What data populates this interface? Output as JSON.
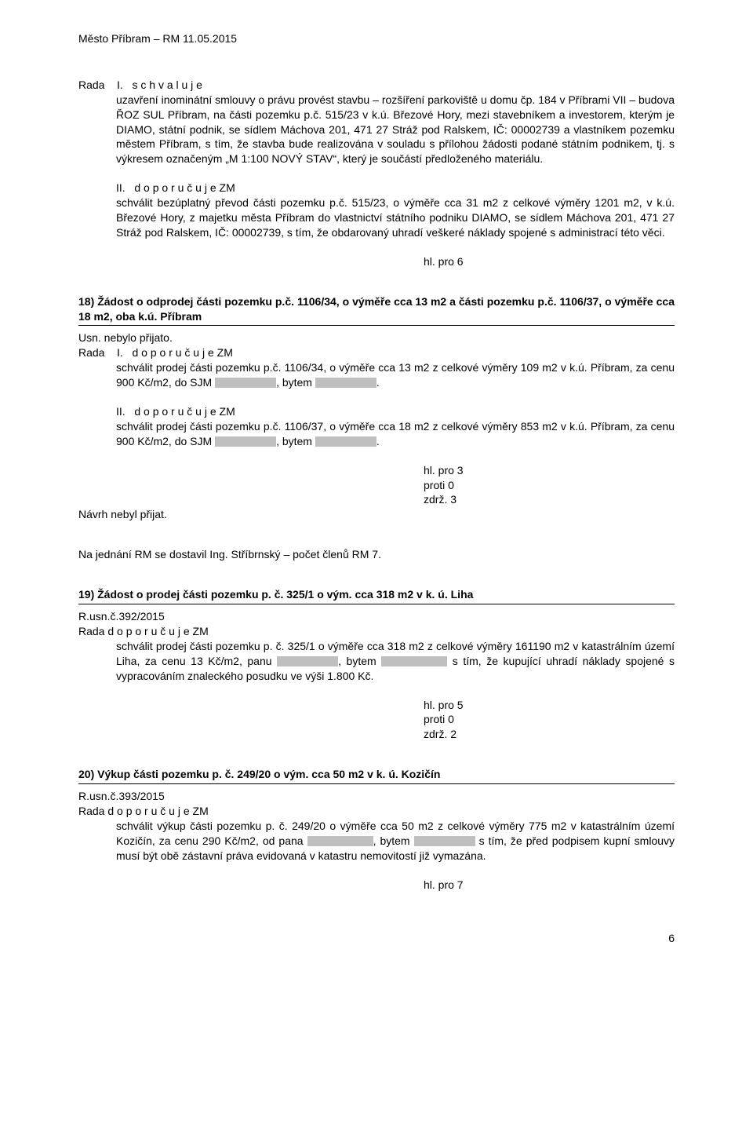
{
  "header": "Město Příbram – RM 11.05.2015",
  "s1": {
    "line1_prefix": "Rada",
    "line1_roman": "I.",
    "line1_rest": "s c h v a l u j e",
    "p1": "uzavření inominátní smlouvy o právu provést stavbu – rozšíření parkoviště u domu čp. 184 v Příbrami VII – budova ŘOZ SUL Příbram, na části pozemku p.č. 515/23 v k.ú. Březové Hory, mezi stavebníkem a investorem, kterým je DIAMO, státní podnik, se sídlem Máchova 201, 471 27 Stráž pod Ralskem, IČ: 00002739 a vlastníkem pozemku městem Příbram, s tím, že stavba bude realizována v souladu s přílohou žádosti podané státním podnikem, tj. s výkresem označeným „M 1:100  NOVÝ STAV“, který je součástí předloženého materiálu.",
    "line2_prefix": "II.",
    "line2_rest": "d o p o r u č u j e  ZM",
    "p2a": "schválit bezúplatný převod části pozemku p.č. 515/23, o výměře cca 31 m2 z celkové výměry 1201 m2, v k.ú. Březové Hory, z majetku města Příbram do vlastnictví státního podniku DIAMO, se sídlem Máchova 201, 471 27 Stráž pod Ralskem, IČ: 00002739, s tím, že obdarovaný uhradí veškeré náklady spojené s administrací této věci.",
    "vote": "hl.  pro  6"
  },
  "s18": {
    "title": "18) Žádost o odprodej části pozemku p.č. 1106/34, o výměře cca 13 m2 a části pozemku p.č. 1106/37, o výměře cca 18 m2, oba k.ú. Příbram",
    "usn": "Usn. nebylo přijato.",
    "line1_prefix": "Rada",
    "line1_roman": "I.",
    "line1_rest": "d o p o r u č u j e   ZM",
    "p1a": "schválit prodej části pozemku p.č. 1106/34, o výměře cca 13 m2 z celkové výměry 109 m2 v k.ú. Příbram, za cenu 900 Kč/m2, do SJM ",
    "p1b": ", bytem ",
    "p1c": ".",
    "line2_prefix": "II.",
    "line2_rest": "d o p o r u č u j e   ZM",
    "p2a": "schválit prodej části pozemku p.č. 1106/37, o výměře cca 18 m2 z celkové výměry 853 m2 v k.ú. Příbram, za cenu 900 Kč/m2, do SJM ",
    "p2b": ", bytem ",
    "p2c": ".",
    "vote1": "hl.  pro  3",
    "vote2": "proti  0",
    "vote3": "zdrž. 3",
    "navrh": "Návrh nebyl přijat."
  },
  "note": "Na jednání RM se dostavil Ing. Stříbrnský – počet členů RM 7.",
  "s19": {
    "title": "19) Žádost o prodej části pozemku p. č. 325/1 o vým. cca 318 m2 v k. ú. Liha",
    "usn": "R.usn.č.392/2015",
    "line1": "Rada   d o p o r u č u j e   ZM",
    "p1a": "schválit prodej části pozemku p. č. 325/1 o výměře cca 318 m2 z celkové výměry 161190 m2 v katastrálním území Liha, za cenu 13 Kč/m2, panu ",
    "p1b": ", bytem ",
    "p1c": " s tím, že kupující uhradí náklady spojené s vypracováním znaleckého posudku ve výši 1.800 Kč.",
    "vote1": "hl.  pro  5",
    "vote2": "proti  0",
    "vote3": "zdrž. 2"
  },
  "s20": {
    "title": "20) Výkup části pozemku p. č. 249/20 o vým. cca 50 m2 v k. ú. Kozičín",
    "usn": "R.usn.č.393/2015",
    "line1": "Rada   d o p o r u č u j e   ZM",
    "p1a": "schválit výkup části pozemku p. č. 249/20 o výměře cca 50 m2 z celkové výměry 775 m2 v katastrálním území Kozičín, za cenu 290 Kč/m2, od pana ",
    "p1b": ", bytem ",
    "p1c": " s tím, že před podpisem kupní smlouvy musí být obě zástavní práva evidovaná v katastru nemovitostí již vymazána.",
    "vote": "hl.  pro  7"
  },
  "page_num": "6"
}
